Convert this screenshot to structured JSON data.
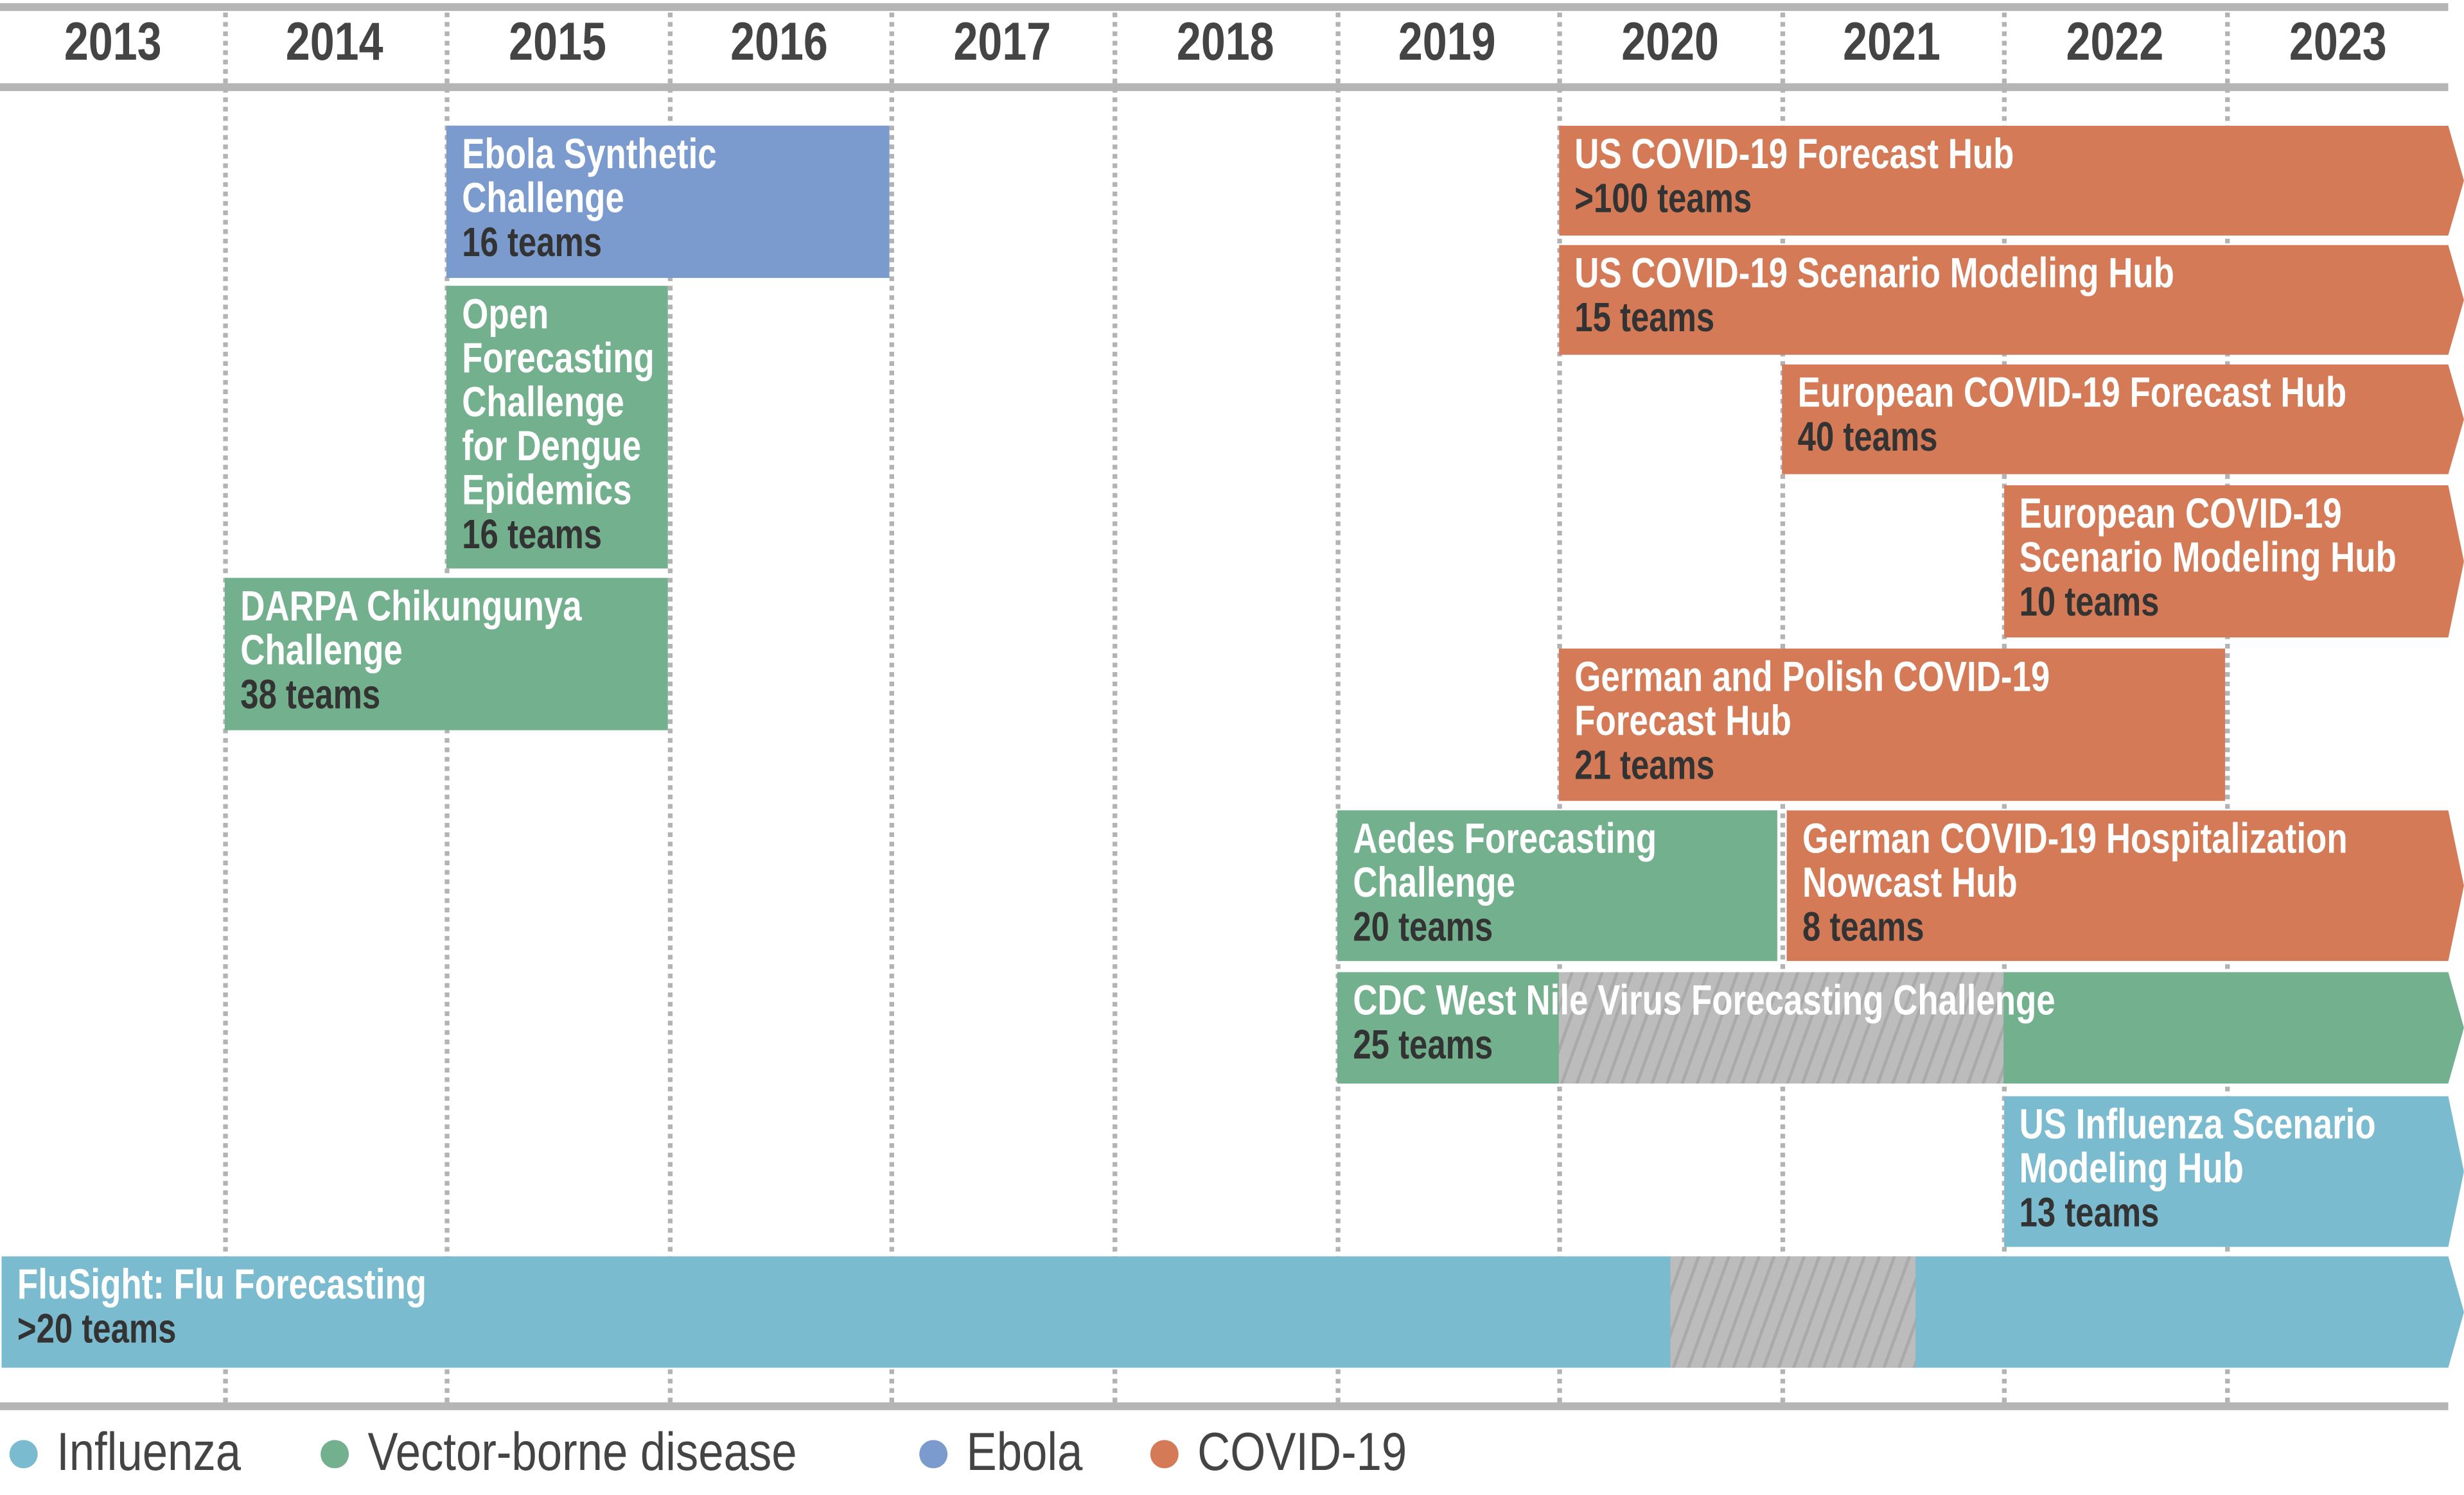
{
  "years": [
    "2013",
    "2014",
    "2015",
    "2016",
    "2017",
    "2018",
    "2019",
    "2020",
    "2021",
    "2022",
    "2023"
  ],
  "colors": {
    "influenza": "#7abbcf",
    "vector": "#72b08e",
    "ebola": "#7b9bcf",
    "covid": "#d47a56",
    "paused": "#bcbcbc"
  },
  "bars": [
    {
      "title": "Ebola Synthetic Challenge",
      "title_lines": [
        "Ebola Synthetic",
        "Challenge"
      ],
      "teams": "16 teams",
      "category": "Ebola",
      "start": 2015,
      "end": 2017
    },
    {
      "title_lines": [
        "Open",
        "Forecasting",
        "Challenge",
        "for Dengue",
        "Epidemics"
      ],
      "teams": "16 teams",
      "category": "Vector-borne disease",
      "start": 2015,
      "end": 2016
    },
    {
      "title_lines": [
        "DARPA Chikungunya",
        "Challenge"
      ],
      "teams": "38 teams",
      "category": "Vector-borne disease",
      "start": 2014,
      "end": 2016
    },
    {
      "title_lines": [
        "US COVID-19 Forecast Hub"
      ],
      "teams": ">100 teams",
      "category": "COVID-19",
      "start": 2020,
      "end": "ongoing"
    },
    {
      "title_lines": [
        "US COVID-19 Scenario Modeling Hub"
      ],
      "teams": "15 teams",
      "category": "COVID-19",
      "start": 2020,
      "end": "ongoing"
    },
    {
      "title_lines": [
        "European COVID-19 Forecast Hub"
      ],
      "teams": "40 teams",
      "category": "COVID-19",
      "start": 2021,
      "end": "ongoing"
    },
    {
      "title_lines": [
        "European COVID-19",
        "Scenario Modeling Hub"
      ],
      "teams": "10 teams",
      "category": "COVID-19",
      "start": 2022,
      "end": "ongoing"
    },
    {
      "title_lines": [
        "German and Polish COVID-19",
        "Forecast Hub"
      ],
      "teams": "21 teams",
      "category": "COVID-19",
      "start": 2020,
      "end": 2023
    },
    {
      "title_lines": [
        "Aedes Forecasting",
        "Challenge"
      ],
      "teams": "20 teams",
      "category": "Vector-borne disease",
      "start": 2019,
      "end": 2021
    },
    {
      "title_lines": [
        "German COVID-19 Hospitalization",
        "Nowcast Hub"
      ],
      "teams": "8 teams",
      "category": "COVID-19",
      "start": 2021,
      "end": "ongoing"
    },
    {
      "title_lines": [
        "CDC West Nile Virus Forecasting Challenge"
      ],
      "teams": "25 teams",
      "category": "Vector-borne disease",
      "start": 2019,
      "end": "ongoing",
      "paused": [
        2020,
        2022
      ]
    },
    {
      "title_lines": [
        "US Influenza Scenario",
        "Modeling Hub"
      ],
      "teams": "13 teams",
      "category": "Influenza",
      "start": 2022,
      "end": "ongoing"
    },
    {
      "title_lines": [
        "FluSight: Flu Forecasting"
      ],
      "teams": ">20 teams",
      "category": "Influenza",
      "start": 2013,
      "end": "ongoing",
      "paused": [
        2020.5,
        2021.6
      ]
    }
  ],
  "legend": [
    "Influenza",
    "Vector-borne disease",
    "Ebola",
    "COVID-19"
  ]
}
